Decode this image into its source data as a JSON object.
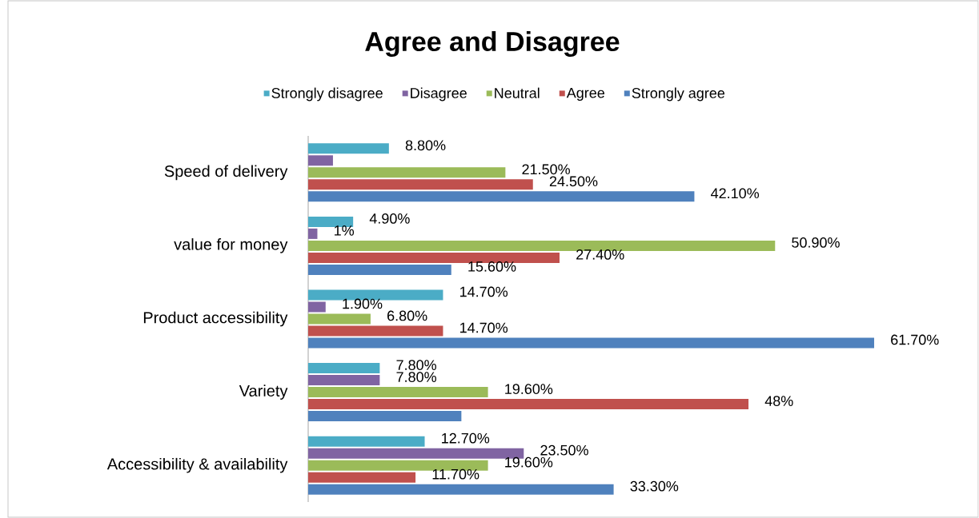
{
  "chart_data": {
    "type": "bar",
    "orientation": "horizontal",
    "title": "Agree and Disagree",
    "categories": [
      "Speed of delivery",
      "value for money",
      "Product accessibility",
      "Variety",
      "Accessibility & availability"
    ],
    "series": [
      {
        "name": "Strongly disagree",
        "color": "#4bacc6",
        "values": [
          8.8,
          4.9,
          14.7,
          7.8,
          12.7
        ],
        "value_labels": [
          "8.80%",
          "4.90%",
          "14.70%",
          "7.80%",
          "12.70%"
        ]
      },
      {
        "name": "Disagree",
        "color": "#8064a2",
        "values": [
          2.7,
          1,
          1.9,
          7.8,
          23.5
        ],
        "value_labels": [
          null,
          "1%",
          "1.90%",
          "7.80%",
          "23.50%"
        ]
      },
      {
        "name": "Neutral",
        "color": "#9bbb59",
        "values": [
          21.5,
          50.9,
          6.8,
          19.6,
          19.6
        ],
        "value_labels": [
          "21.50%",
          "50.90%",
          "6.80%",
          "19.60%",
          "19.60%"
        ]
      },
      {
        "name": "Agree",
        "color": "#c0504d",
        "values": [
          24.5,
          27.4,
          14.7,
          48,
          11.7
        ],
        "value_labels": [
          "24.50%",
          "27.40%",
          "14.70%",
          "48%",
          "11.70%"
        ]
      },
      {
        "name": "Strongly agree",
        "color": "#4f81bd",
        "values": [
          42.1,
          15.6,
          61.7,
          16.7,
          33.3
        ],
        "value_labels": [
          "42.10%",
          "15.60%",
          "61.70%",
          null,
          "33.30%"
        ]
      }
    ],
    "legend": "top"
  }
}
